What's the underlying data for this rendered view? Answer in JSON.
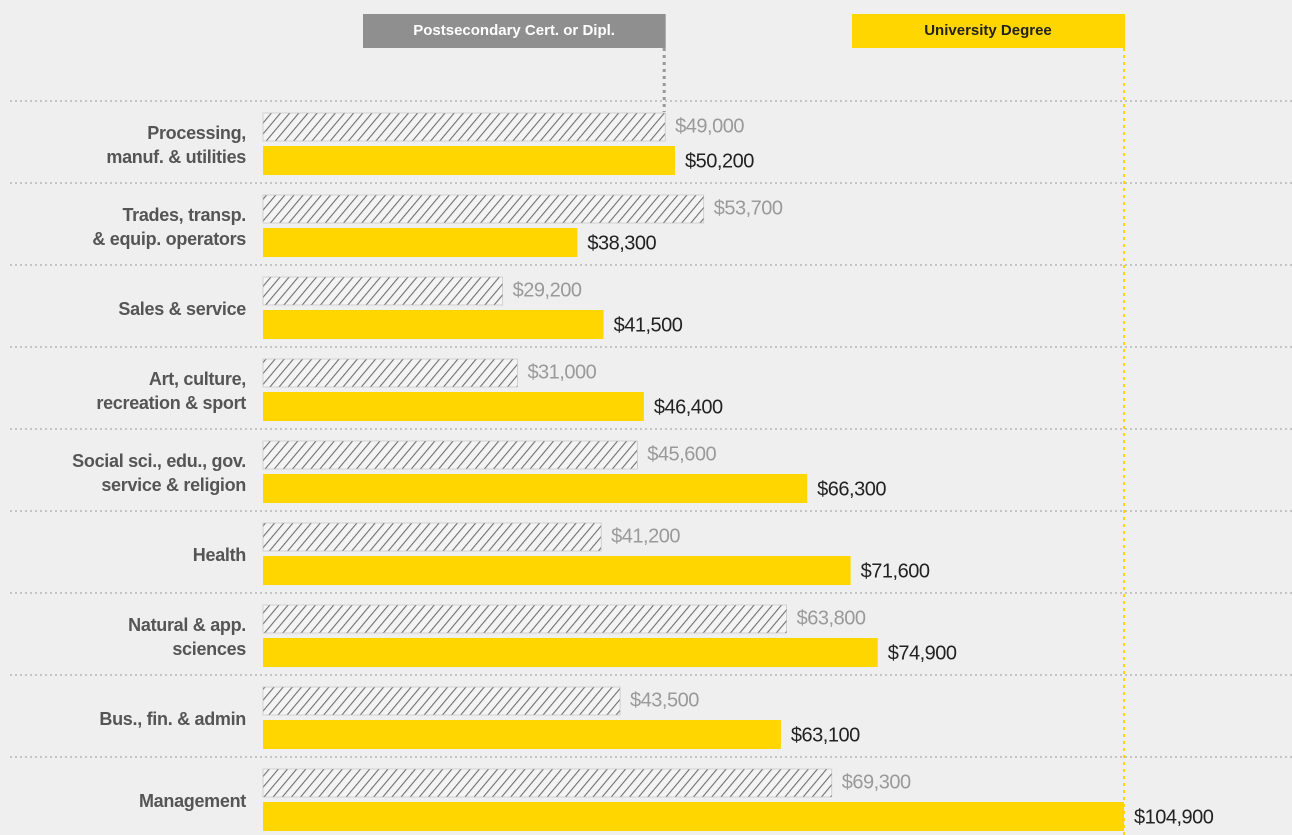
{
  "chart_data": {
    "type": "bar",
    "orientation": "horizontal",
    "categories": [
      "Processing,\nmanuf. & utilities",
      "Trades, transp.\n& equip. operators",
      "Sales & service",
      "Art, culture,\nrecreation & sport",
      "Social sci., edu., gov.\nservice & religion",
      "Health",
      "Natural & app.\nsciences",
      "Bus., fin. & admin",
      "Management"
    ],
    "series": [
      {
        "name": "Postsecondary Cert. or Dipl.",
        "color": "#707070",
        "values": [
          49000,
          53700,
          29200,
          31000,
          45600,
          41200,
          63800,
          43500,
          69300
        ],
        "value_labels": [
          "$49,000",
          "$53,700",
          "$29,200",
          "$31,000",
          "$45,600",
          "$41,200",
          "$63,800",
          "$43,500",
          "$69,300"
        ]
      },
      {
        "name": "University Degree",
        "color": "#ffd600",
        "values": [
          50200,
          38300,
          41500,
          46400,
          66300,
          71600,
          74900,
          63100,
          104900
        ],
        "value_labels": [
          "$50,200",
          "$38,300",
          "$41,500",
          "$46,400",
          "$66,300",
          "$71,600",
          "$74,900",
          "$63,100",
          "$104,900"
        ]
      }
    ]
  }
}
